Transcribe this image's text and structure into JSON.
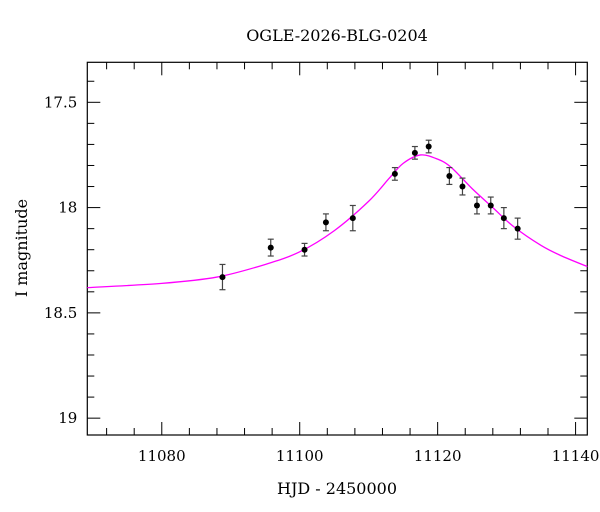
{
  "chart_data": {
    "type": "scatter",
    "title": "OGLE-2026-BLG-0204",
    "xlabel": "HJD - 2450000",
    "ylabel": "I magnitude",
    "xlim": [
      11069.2,
      11141.7
    ],
    "ylim": [
      19.08,
      17.31
    ],
    "y_inverted": true,
    "grid": false,
    "x_ticks": [
      11080,
      11100,
      11120,
      11140
    ],
    "x_tick_labels": [
      "11080",
      "11100",
      "11120",
      "11140"
    ],
    "x_minor_step": 4,
    "y_ticks": [
      17.5,
      18,
      18.5,
      19
    ],
    "y_tick_labels": [
      "17.5",
      "18",
      "18.5",
      "19"
    ],
    "y_minor_step": 0.1,
    "colors": {
      "points": "#000000",
      "errorbars": "#444444",
      "model": "#ff00ff"
    },
    "points": [
      {
        "x": 11088.8,
        "y": 18.33,
        "err": 0.06
      },
      {
        "x": 11095.8,
        "y": 18.19,
        "err": 0.04
      },
      {
        "x": 11100.7,
        "y": 18.2,
        "err": 0.03
      },
      {
        "x": 11103.8,
        "y": 18.07,
        "err": 0.04
      },
      {
        "x": 11107.7,
        "y": 18.05,
        "err": 0.06
      },
      {
        "x": 11113.8,
        "y": 17.84,
        "err": 0.03
      },
      {
        "x": 11116.7,
        "y": 17.74,
        "err": 0.03
      },
      {
        "x": 11118.7,
        "y": 17.71,
        "err": 0.03
      },
      {
        "x": 11121.7,
        "y": 17.85,
        "err": 0.04
      },
      {
        "x": 11123.6,
        "y": 17.9,
        "err": 0.04
      },
      {
        "x": 11125.7,
        "y": 17.99,
        "err": 0.04
      },
      {
        "x": 11127.7,
        "y": 17.99,
        "err": 0.04
      },
      {
        "x": 11129.6,
        "y": 18.05,
        "err": 0.05
      },
      {
        "x": 11131.6,
        "y": 18.1,
        "err": 0.05
      }
    ],
    "model_curve": {
      "x": [
        11069.2,
        11080,
        11088,
        11095,
        11100,
        11105,
        11110,
        11113,
        11115,
        11117.5,
        11120,
        11122,
        11125,
        11128,
        11131,
        11135,
        11138,
        11141.7
      ],
      "y": [
        18.38,
        18.36,
        18.33,
        18.27,
        18.21,
        18.11,
        17.97,
        17.86,
        17.79,
        17.75,
        17.77,
        17.81,
        17.91,
        18.0,
        18.09,
        18.18,
        18.23,
        18.28
      ]
    }
  }
}
